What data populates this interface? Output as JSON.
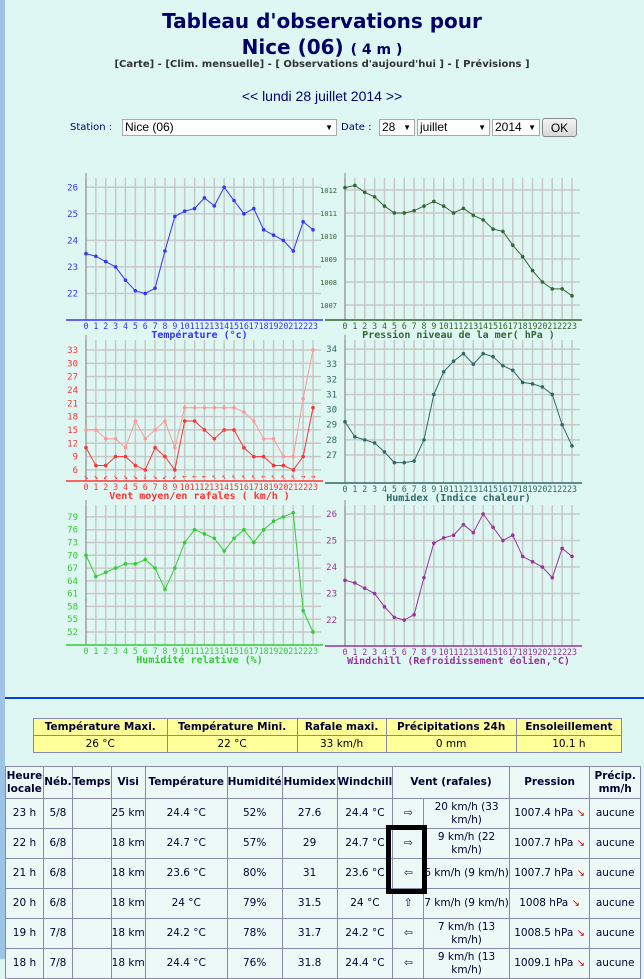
{
  "header": {
    "title": "Tableau d'observations pour",
    "station_title": "Nice (06)",
    "altitude": "( 4 m )",
    "links": [
      "[Carte]",
      "[Clim. mensuelle]",
      "[ Observations d'aujourd'hui ]",
      "[ Prévisions ]"
    ],
    "link_sep": " - ",
    "prev": "<<",
    "date": "lundi 28 juillet 2014",
    "next": ">>"
  },
  "form": {
    "station_label": "Station :",
    "station_value": "Nice (06)",
    "date_label": "Date :",
    "day": "28",
    "month": "juillet",
    "year": "2014",
    "ok": "OK"
  },
  "colors": {
    "separator": "#0044dd",
    "summary_bg": "#ffff99"
  },
  "chart_data": [
    {
      "type": "line",
      "title": "Température (°c)",
      "color": "#3333ff",
      "ylim": [
        21.0,
        26.35
      ],
      "yticks": [
        22,
        23,
        24,
        25,
        26
      ],
      "x": [
        0,
        1,
        2,
        3,
        4,
        5,
        6,
        7,
        8,
        9,
        10,
        11,
        12,
        13,
        14,
        15,
        16,
        17,
        18,
        19,
        20,
        21,
        22,
        23
      ],
      "series": [
        {
          "name": "Température",
          "values": [
            23.5,
            23.4,
            23.2,
            23.0,
            22.5,
            22.1,
            22.0,
            22.2,
            23.6,
            24.9,
            25.1,
            25.2,
            25.6,
            25.3,
            26.0,
            25.5,
            25.0,
            25.2,
            24.4,
            24.2,
            24.0,
            23.6,
            24.7,
            24.4
          ]
        }
      ]
    },
    {
      "type": "line",
      "title": "Pression niveau de la mer( hPa )",
      "color": "#336633",
      "ylim": [
        1006.35,
        1012.52
      ],
      "yticks": [
        1007,
        1008,
        1009,
        1010,
        1011,
        1012
      ],
      "x": [
        0,
        1,
        2,
        3,
        4,
        5,
        6,
        7,
        8,
        9,
        10,
        11,
        12,
        13,
        14,
        15,
        16,
        17,
        18,
        19,
        20,
        21,
        22,
        23
      ],
      "series": [
        {
          "name": "Pression",
          "values": [
            1012.1,
            1012.2,
            1011.9,
            1011.7,
            1011.3,
            1011.0,
            1011.0,
            1011.1,
            1011.3,
            1011.5,
            1011.3,
            1011.0,
            1011.2,
            1010.9,
            1010.7,
            1010.3,
            1010.2,
            1009.6,
            1009.1,
            1008.5,
            1008.0,
            1007.7,
            1007.7,
            1007.4
          ]
        }
      ]
    },
    {
      "type": "line",
      "title": "Vent moyen/en rafales ( km/h )",
      "color": "#ff3333",
      "ylim": [
        3.5,
        35.25
      ],
      "yticks": [
        6,
        9,
        12,
        15,
        18,
        21,
        24,
        27,
        30,
        33
      ],
      "x": [
        0,
        1,
        2,
        3,
        4,
        5,
        6,
        7,
        8,
        9,
        10,
        11,
        12,
        13,
        14,
        15,
        16,
        17,
        18,
        19,
        20,
        21,
        22,
        23
      ],
      "series": [
        {
          "name": "Rafales",
          "color": "#ff9999",
          "values": [
            15,
            15,
            13,
            13,
            11,
            17,
            13,
            15,
            17,
            11,
            20,
            20,
            20,
            20,
            20,
            20,
            19,
            17,
            13,
            13,
            9,
            9,
            22,
            33
          ]
        },
        {
          "name": "Vent moyen",
          "color": "#ff3333",
          "values": [
            11,
            7,
            7,
            9,
            9,
            7,
            6,
            11,
            9,
            6,
            17,
            17,
            15,
            13,
            15,
            15,
            11,
            9,
            9,
            7,
            7,
            6,
            9,
            20
          ]
        }
      ],
      "directions": [
        "↘",
        "↘",
        "↙",
        "↘",
        "↘",
        "↘",
        "↓",
        "↘",
        "↙",
        "↙",
        "←",
        "←",
        "←",
        "↖",
        "↖",
        "↖",
        "↖",
        "↖",
        "←",
        "↖",
        "↖",
        "↖",
        "→",
        "→"
      ]
    },
    {
      "type": "line",
      "title": "Humidex (Indice chaleur)",
      "color": "#336666",
      "ylim": [
        25.15,
        34.6
      ],
      "yticks": [
        27,
        28,
        29,
        30,
        31,
        32,
        33,
        34
      ],
      "x": [
        0,
        1,
        2,
        3,
        4,
        5,
        6,
        7,
        8,
        9,
        10,
        11,
        12,
        13,
        14,
        15,
        16,
        17,
        18,
        19,
        20,
        21,
        22,
        23
      ],
      "series": [
        {
          "name": "Humidex",
          "values": [
            29.2,
            28.2,
            28.0,
            27.8,
            27.2,
            26.5,
            26.5,
            26.6,
            28.0,
            31.0,
            32.5,
            33.2,
            33.7,
            33.0,
            33.7,
            33.5,
            32.9,
            32.6,
            31.8,
            31.7,
            31.5,
            31.0,
            29.0,
            27.6
          ]
        }
      ]
    },
    {
      "type": "line",
      "title": "Humidité relative (%)",
      "color": "#33cc33",
      "ylim": [
        48.95,
        81.8
      ],
      "yticks": [
        52,
        55,
        58,
        61,
        64,
        67,
        70,
        73,
        76,
        79
      ],
      "x": [
        0,
        1,
        2,
        3,
        4,
        5,
        6,
        7,
        8,
        9,
        10,
        11,
        12,
        13,
        14,
        15,
        16,
        17,
        18,
        19,
        20,
        21,
        22,
        23
      ],
      "series": [
        {
          "name": "Humidité",
          "values": [
            70,
            65,
            66,
            67,
            68,
            68,
            69,
            67,
            62,
            67,
            73,
            76,
            75,
            74,
            71,
            74,
            76,
            73,
            76,
            78,
            79,
            80,
            57,
            52
          ]
        }
      ]
    },
    {
      "type": "line",
      "title": "Windchill (Refroidissement éolien,°C)",
      "color": "#993399",
      "ylim": [
        21.02,
        26.34
      ],
      "yticks": [
        22,
        23,
        24,
        25,
        26
      ],
      "x": [
        0,
        1,
        2,
        3,
        4,
        5,
        6,
        7,
        8,
        9,
        10,
        11,
        12,
        13,
        14,
        15,
        16,
        17,
        18,
        19,
        20,
        21,
        22,
        23
      ],
      "series": [
        {
          "name": "Windchill",
          "values": [
            23.5,
            23.4,
            23.2,
            23.0,
            22.5,
            22.1,
            22.0,
            22.2,
            23.6,
            24.9,
            25.1,
            25.2,
            25.6,
            25.3,
            26.0,
            25.5,
            25.0,
            25.2,
            24.4,
            24.2,
            24.0,
            23.6,
            24.7,
            24.4
          ]
        }
      ]
    }
  ],
  "summary": {
    "headers": [
      "Température Maxi.",
      "Température Mini.",
      "Rafale maxi.",
      "Précipitations 24h",
      "Ensoleillement"
    ],
    "values": [
      "26 °C",
      "22 °C",
      "33 km/h",
      "0 mm",
      "10.1 h"
    ]
  },
  "table": {
    "headers": [
      "Heure locale",
      "Néb.",
      "Temps",
      "Visi",
      "Température",
      "Humidité",
      "Humidex",
      "Windchill",
      "Vent (rafales)",
      "Pression",
      "Précip. mm/h"
    ],
    "rows": [
      {
        "heure": "23 h",
        "neb": "5/8",
        "temps": "",
        "visi": "25 km",
        "temp": "24.4 °C",
        "hum": "52%",
        "humidex": "27.6",
        "windchill": "24.4 °C",
        "dir": "⇨",
        "vent": "20 km/h (33 km/h)",
        "pression": "1007.4 hPa",
        "trend": "↘",
        "precip": "aucune"
      },
      {
        "heure": "22 h",
        "neb": "6/8",
        "temps": "",
        "visi": "18 km",
        "temp": "24.7 °C",
        "hum": "57%",
        "humidex": "29",
        "windchill": "24.7 °C",
        "dir": "⇨",
        "vent": "9 km/h (22 km/h)",
        "pression": "1007.7 hPa",
        "trend": "↘",
        "precip": "aucune"
      },
      {
        "heure": "21 h",
        "neb": "6/8",
        "temps": "",
        "visi": "18 km",
        "temp": "23.6 °C",
        "hum": "80%",
        "humidex": "31",
        "windchill": "23.6 °C",
        "dir": "⇦",
        "vent": "6 km/h (9 km/h)",
        "pression": "1007.7 hPa",
        "trend": "↘",
        "precip": "aucune"
      },
      {
        "heure": "20 h",
        "neb": "6/8",
        "temps": "",
        "visi": "18 km",
        "temp": "24 °C",
        "hum": "79%",
        "humidex": "31.5",
        "windchill": "24 °C",
        "dir": "⇧",
        "vent": "7 km/h (9 km/h)",
        "pression": "1008 hPa",
        "trend": "↘",
        "precip": "aucune"
      },
      {
        "heure": "19 h",
        "neb": "7/8",
        "temps": "",
        "visi": "18 km",
        "temp": "24.2 °C",
        "hum": "78%",
        "humidex": "31.7",
        "windchill": "24.2 °C",
        "dir": "⇦",
        "vent": "7 km/h (13 km/h)",
        "pression": "1008.5 hPa",
        "trend": "↘",
        "precip": "aucune"
      },
      {
        "heure": "18 h",
        "neb": "7/8",
        "temps": "",
        "visi": "18 km",
        "temp": "24.4 °C",
        "hum": "76%",
        "humidex": "31.8",
        "windchill": "24.4 °C",
        "dir": "⇦",
        "vent": "9 km/h (13 km/h)",
        "pression": "1009.1 hPa",
        "trend": "↘",
        "precip": "aucune"
      }
    ]
  }
}
